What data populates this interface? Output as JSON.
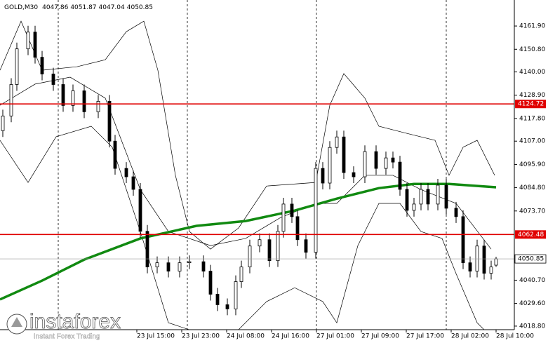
{
  "chart_data": {
    "type": "candlestick",
    "symbol": "GOLD,M30",
    "ohlc": [
      4047.86,
      4051.87,
      4047.04,
      4050.85
    ],
    "ylim": [
      4017.1,
      4174.3
    ],
    "yticks": [
      {
        "value": 4161.9,
        "label": "4161.90"
      },
      {
        "value": 4150.8,
        "label": "4150.80"
      },
      {
        "value": 4140.0,
        "label": "4140.00"
      },
      {
        "value": 4128.9,
        "label": "4128.90"
      },
      {
        "value": 4117.8,
        "label": "4117.80"
      },
      {
        "value": 4107.0,
        "label": "4107.00"
      },
      {
        "value": 4095.9,
        "label": "4095.90"
      },
      {
        "value": 4084.8,
        "label": "4084.80"
      },
      {
        "value": 4073.7,
        "label": "4073.70"
      },
      {
        "value": 4040.7,
        "label": "4040.70"
      },
      {
        "value": 4029.6,
        "label": "4029.60"
      },
      {
        "value": 4018.8,
        "label": "4018.80"
      }
    ],
    "xlim": [
      0,
      183.25
    ],
    "xticks": [
      {
        "value": 48.75,
        "label": "23 Jul 15:00"
      },
      {
        "value": 64.75,
        "label": "23 Jul 23:00"
      },
      {
        "value": 80.75,
        "label": "24 Jul 08:00"
      },
      {
        "value": 96.75,
        "label": "24 Jul 16:00"
      },
      {
        "value": 112.75,
        "label": "27 Jul 01:00"
      },
      {
        "value": 128.75,
        "label": "27 Jul 09:00"
      },
      {
        "value": 144.75,
        "label": "27 Jul 17:00"
      },
      {
        "value": 160.75,
        "label": "28 Jul 02:00"
      },
      {
        "value": 176.75,
        "label": "28 Jul 10:00"
      }
    ],
    "candles": {
      "x": [
        1,
        4,
        6,
        10,
        12.5,
        15,
        19,
        22.5,
        26,
        30,
        35,
        39,
        41,
        45,
        47.5,
        50,
        52.5,
        56,
        60,
        64,
        67.5,
        72.5,
        75,
        77.5,
        81,
        84,
        86,
        89,
        92.5,
        96,
        99,
        101,
        104,
        106,
        109,
        112.5,
        115,
        117.5,
        120,
        122.5,
        126,
        130,
        134,
        137.5,
        140,
        142.5,
        145,
        147.5,
        150,
        152.5,
        156,
        159,
        162.5,
        165,
        167.5,
        170,
        172.5,
        175,
        176.75
      ],
      "open": [
        4112,
        4119,
        4134,
        4151,
        4159,
        4147,
        4139,
        4134,
        4124,
        4131,
        4121,
        4126,
        4107,
        4094,
        4090,
        4084,
        4064,
        4047,
        4049,
        4045,
        4049,
        4049.5,
        4045,
        4034,
        4029,
        4027,
        4040,
        4047,
        4057,
        4060,
        4050,
        4064,
        4077,
        4071,
        4060,
        4054,
        4094,
        4087,
        4104,
        4109,
        4092,
        4090,
        4102,
        4094,
        4099,
        4097,
        4084,
        4074,
        4077,
        4084,
        4077,
        4086,
        4075,
        4071,
        4049,
        4045,
        4057,
        4044,
        4047.86
      ],
      "high": [
        4122,
        4137,
        4154,
        4162,
        4162,
        4150,
        4142,
        4137,
        4134,
        4134,
        4129,
        4129,
        4110,
        4097,
        4093,
        4087,
        4067,
        4052,
        4052,
        4052,
        4052.5,
        4052.5,
        4048,
        4037,
        4032,
        4043,
        4050,
        4060,
        4063,
        4063,
        4067,
        4080,
        4080,
        4074,
        4063,
        4097,
        4097,
        4107,
        4112,
        4112,
        4095,
        4105,
        4105,
        4102,
        4102,
        4100,
        4087,
        4080,
        4087,
        4087,
        4089,
        4089,
        4078,
        4074,
        4052,
        4060,
        4060,
        4050,
        4051.87
      ],
      "low": [
        4109,
        4116,
        4131,
        4148,
        4144,
        4136,
        4131,
        4121,
        4121,
        4118,
        4118,
        4104,
        4091,
        4087,
        4081,
        4061,
        4044,
        4044,
        4042,
        4042,
        4046,
        4042,
        4031,
        4026,
        4024,
        4024,
        4037,
        4044,
        4054,
        4047,
        4047,
        4061,
        4068,
        4057,
        4051,
        4051,
        4084,
        4084,
        4101,
        4089,
        4087,
        4087,
        4091,
        4091,
        4094,
        4081,
        4071,
        4071,
        4074,
        4074,
        4074,
        4072,
        4068,
        4046,
        4042,
        4042,
        4041,
        4041,
        4047.04
      ],
      "close": [
        4119,
        4134,
        4151,
        4159,
        4147,
        4139,
        4134,
        4124,
        4131,
        4121,
        4126,
        4107,
        4094,
        4090,
        4084,
        4064,
        4047,
        4049,
        4045,
        4049,
        4049.5,
        4045,
        4034,
        4029,
        4027,
        4040,
        4047,
        4057,
        4060,
        4050,
        4064,
        4077,
        4071,
        4060,
        4054,
        4094,
        4087,
        4104,
        4109,
        4092,
        4090,
        4102,
        4094,
        4099,
        4097,
        4084,
        4074,
        4077,
        4084,
        4077,
        4086,
        4075,
        4071,
        4049,
        4045,
        4057,
        4044,
        4047,
        4050.85
      ]
    },
    "lines": [
      {
        "color": "#000000",
        "width": 0.7,
        "x": [
          0,
          7.5,
          15,
          27.5,
          37.5,
          45,
          51.25,
          56.25,
          62.5,
          67.5,
          75,
          85,
          95,
          112.5,
          117.5,
          122.5,
          130,
          135,
          145,
          155,
          160,
          165,
          170,
          176.25
        ],
        "values": [
          4140.8,
          4164.2,
          4140.8,
          4142.5,
          4145.8,
          4159.2,
          4164.2,
          4140.8,
          4090.7,
          4063.9,
          4055.5,
          4065.6,
          4085.6,
          4087.3,
          4124.1,
          4139.2,
          4127.5,
          4114.1,
          4110.7,
          4107.4,
          4090.7,
          4104.1,
          4107.4,
          4090.7
        ]
      },
      {
        "color": "#000000",
        "width": 0.7,
        "x": [
          0,
          12.5,
          25,
          37.5,
          50,
          60,
          75,
          87.5,
          100,
          112.5,
          120,
          130,
          140,
          150,
          162.5,
          175
        ],
        "values": [
          4124.1,
          4134.2,
          4137.5,
          4127.5,
          4083.9,
          4063.9,
          4057.2,
          4060.6,
          4070.6,
          4077.3,
          4077.3,
          4090.7,
          4090.7,
          4083.9,
          4077.3,
          4055.5
        ]
      },
      {
        "color": "#000000",
        "width": 0.7,
        "x": [
          0,
          10,
          20,
          32.5,
          40,
          50,
          60,
          75,
          85,
          95,
          105,
          115,
          120,
          127.5,
          135,
          142.5,
          150,
          157.5,
          162.5,
          170,
          175
        ],
        "values": [
          4107.4,
          4087.3,
          4109.1,
          4114.1,
          4104.1,
          4063.9,
          4020.4,
          4013.7,
          4017.1,
          4030.5,
          4037.1,
          4030.5,
          4020.4,
          4057.2,
          4077.3,
          4077.3,
          4063.9,
          4060.6,
          4043.8,
          4020.4,
          4013.7
        ]
      },
      {
        "color": "#118a11",
        "width": 3.5,
        "x": [
          0,
          15,
          30,
          50,
          70,
          87.5,
          105,
          120,
          135,
          147.5,
          160,
          176.75
        ],
        "values": [
          4031.5,
          4040.5,
          4050.5,
          4060.6,
          4066.6,
          4068.9,
          4073.9,
          4079.6,
          4084.6,
          4086.6,
          4086.6,
          4085.0
        ]
      }
    ],
    "levels": [
      {
        "value": 4124.72,
        "color": "#e00000"
      },
      {
        "value": 4062.48,
        "color": "#e00000"
      }
    ],
    "current_price": 4050.85,
    "logo": {
      "name": "instaforex",
      "tagline": "Instant Forex Trading"
    }
  }
}
